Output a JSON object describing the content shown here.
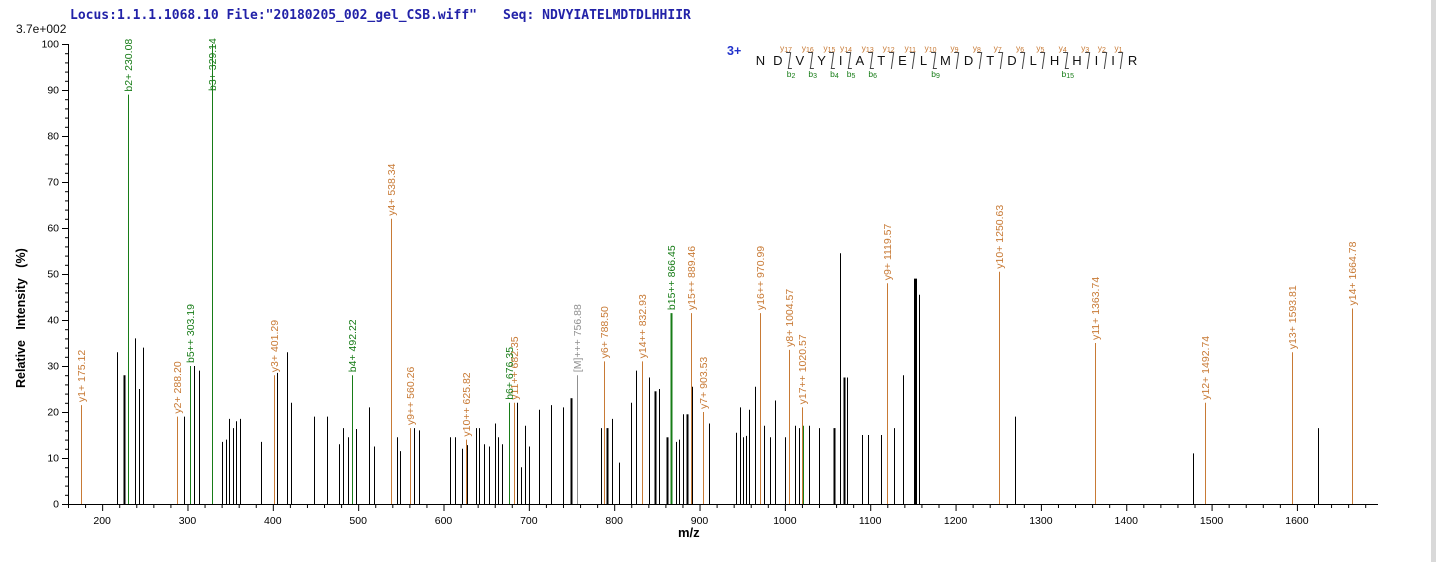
{
  "header": {
    "locus_file": "Locus:1.1.1.1068.10 File:\"20180205_002_gel_CSB.wiff\"",
    "seq_label": "Seq:",
    "sequence": "NDVYIATELMDTDLHHIIR",
    "text_color": "#2222a8"
  },
  "peptide_map": {
    "charge_label": "3+",
    "residues": [
      "N",
      "D",
      "V",
      "Y",
      "I",
      "A",
      "T",
      "E",
      "L",
      "M",
      "D",
      "T",
      "D",
      "L",
      "H",
      "H",
      "I",
      "I",
      "R"
    ],
    "gap_annotations": [
      {
        "gap_after": 2,
        "y": "y17",
        "b": "b2"
      },
      {
        "gap_after": 3,
        "y": "y16",
        "b": "b3"
      },
      {
        "gap_after": 4,
        "y": "y15",
        "b": "b4"
      },
      {
        "gap_after": 5,
        "y": "y14",
        "b": "b5"
      },
      {
        "gap_after": 6,
        "y": "y13",
        "b": "b6"
      },
      {
        "gap_after": 7,
        "y": "y12",
        "b": null
      },
      {
        "gap_after": 8,
        "y": "y11",
        "b": null
      },
      {
        "gap_after": 9,
        "y": "y10",
        "b": "b9"
      },
      {
        "gap_after": 10,
        "y": "y9",
        "b": null
      },
      {
        "gap_after": 11,
        "y": "y8",
        "b": null
      },
      {
        "gap_after": 12,
        "y": "y7",
        "b": null
      },
      {
        "gap_after": 13,
        "y": "y6",
        "b": null
      },
      {
        "gap_after": 14,
        "y": "y5",
        "b": null
      },
      {
        "gap_after": 15,
        "y": "y4",
        "b": "b15"
      },
      {
        "gap_after": 16,
        "y": "y3",
        "b": null
      },
      {
        "gap_after": 17,
        "y": "y2",
        "b": null
      },
      {
        "gap_after": 18,
        "y": "y1",
        "b": null
      }
    ]
  },
  "chart_data": {
    "type": "bar",
    "subtype": "ms2-mass-spectrum",
    "intensity_scale": "3.7e+002",
    "xlabel": "m/z",
    "ylabel": "Relative  Intensity (%)",
    "xlim": [
      160,
      1695
    ],
    "ylim": [
      0,
      100
    ],
    "x_major_tick_start": 200,
    "x_major_tick_end": 1600,
    "x_major_step": 100,
    "x_minor_step": 20,
    "y_major_step": 10,
    "y_minor_step": 2,
    "grid": false,
    "colors": {
      "y_ion": "#c87a35",
      "b_ion": "#177c17",
      "precursor": "#909090",
      "unassigned": "#000000",
      "axis": "#000000"
    },
    "series": [
      {
        "name": "y-ions",
        "color_key": "y_ion",
        "peaks": [
          {
            "mz": 175.12,
            "pct": 21.5,
            "label": "y1+ 175.12"
          },
          {
            "mz": 288.2,
            "pct": 19.0,
            "label": "y2+ 288.20"
          },
          {
            "mz": 401.29,
            "pct": 28.0,
            "label": "y3+ 401.29"
          },
          {
            "mz": 538.34,
            "pct": 62.0,
            "label": "y4+ 538.34"
          },
          {
            "mz": 560.26,
            "pct": 16.5,
            "label": "y9++ 560.26"
          },
          {
            "mz": 625.82,
            "pct": 14.0,
            "label": "y10++ 625.82"
          },
          {
            "mz": 682.35,
            "pct": 22.0,
            "label": "y11++ 682.35"
          },
          {
            "mz": 788.5,
            "pct": 31.0,
            "label": "y6+ 788.50"
          },
          {
            "mz": 832.93,
            "pct": 31.0,
            "label": "y14++ 832.93"
          },
          {
            "mz": 889.46,
            "pct": 41.5,
            "label": "y15++ 889.46"
          },
          {
            "mz": 903.53,
            "pct": 20.0,
            "label": "y7+ 903.53"
          },
          {
            "mz": 970.99,
            "pct": 41.5,
            "label": "y16++ 970.99"
          },
          {
            "mz": 1004.57,
            "pct": 33.5,
            "label": "y8+ 1004.57"
          },
          {
            "mz": 1020.57,
            "pct": 21.0,
            "label": "y17++ 1020.57"
          },
          {
            "mz": 1119.57,
            "pct": 48.0,
            "label": "y9+ 1119.57"
          },
          {
            "mz": 1250.63,
            "pct": 50.5,
            "label": "y10+ 1250.63"
          },
          {
            "mz": 1363.74,
            "pct": 35.0,
            "label": "y11+ 1363.74"
          },
          {
            "mz": 1492.74,
            "pct": 22.0,
            "label": "y12+ 1492.74"
          },
          {
            "mz": 1593.81,
            "pct": 33.0,
            "label": "y13+ 1593.81"
          },
          {
            "mz": 1664.78,
            "pct": 42.5,
            "label": "y14+ 1664.78"
          }
        ]
      },
      {
        "name": "b-ions",
        "color_key": "b_ion",
        "peaks": [
          {
            "mz": 230.08,
            "pct": 89.0,
            "label": "b2+ 230.08"
          },
          {
            "mz": 303.19,
            "pct": 30.0,
            "label": "b5++ 303.19"
          },
          {
            "mz": 329.14,
            "pct": 100.0,
            "label": "b3+ 329.14"
          },
          {
            "mz": 492.22,
            "pct": 28.0,
            "label": "b4+ 492.22"
          },
          {
            "mz": 676.35,
            "pct": 22.0,
            "label": "b6+ 676.35"
          },
          {
            "mz": 866.45,
            "pct": 41.5,
            "label": "b15++ 866.45",
            "w": 2
          },
          {
            "mz": 1020.9,
            "pct": 17.0,
            "label": ""
          }
        ]
      },
      {
        "name": "precursor",
        "color_key": "precursor",
        "peaks": [
          {
            "mz": 756.88,
            "pct": 28.0,
            "label": "[M]+++ 756.88"
          }
        ]
      },
      {
        "name": "unassigned",
        "color_key": "unassigned",
        "peaks": [
          {
            "mz": 218,
            "pct": 33
          },
          {
            "mz": 226,
            "pct": 28,
            "w": 2
          },
          {
            "mz": 238,
            "pct": 36
          },
          {
            "mz": 243,
            "pct": 25
          },
          {
            "mz": 248,
            "pct": 34
          },
          {
            "mz": 296,
            "pct": 19
          },
          {
            "mz": 308,
            "pct": 30
          },
          {
            "mz": 313,
            "pct": 29
          },
          {
            "mz": 340,
            "pct": 13.5
          },
          {
            "mz": 345,
            "pct": 14
          },
          {
            "mz": 349,
            "pct": 18.5
          },
          {
            "mz": 353,
            "pct": 16.5
          },
          {
            "mz": 357,
            "pct": 18
          },
          {
            "mz": 361,
            "pct": 18.5
          },
          {
            "mz": 386,
            "pct": 13.5
          },
          {
            "mz": 405,
            "pct": 28.5
          },
          {
            "mz": 417,
            "pct": 33
          },
          {
            "mz": 421,
            "pct": 22
          },
          {
            "mz": 448,
            "pct": 19
          },
          {
            "mz": 464,
            "pct": 19
          },
          {
            "mz": 478,
            "pct": 13
          },
          {
            "mz": 482,
            "pct": 16.5
          },
          {
            "mz": 488,
            "pct": 14.5
          },
          {
            "mz": 497,
            "pct": 16.3
          },
          {
            "mz": 513,
            "pct": 21
          },
          {
            "mz": 519,
            "pct": 12.5
          },
          {
            "mz": 545,
            "pct": 14.5
          },
          {
            "mz": 549,
            "pct": 11.5
          },
          {
            "mz": 566,
            "pct": 16.5
          },
          {
            "mz": 571,
            "pct": 16
          },
          {
            "mz": 608,
            "pct": 14.5
          },
          {
            "mz": 613,
            "pct": 14.5
          },
          {
            "mz": 622,
            "pct": 12
          },
          {
            "mz": 628,
            "pct": 12.8
          },
          {
            "mz": 638,
            "pct": 16.5
          },
          {
            "mz": 642,
            "pct": 16.5
          },
          {
            "mz": 648,
            "pct": 13
          },
          {
            "mz": 653,
            "pct": 12.5
          },
          {
            "mz": 660,
            "pct": 17.5
          },
          {
            "mz": 664,
            "pct": 14.5
          },
          {
            "mz": 668,
            "pct": 13
          },
          {
            "mz": 686,
            "pct": 22
          },
          {
            "mz": 691,
            "pct": 8
          },
          {
            "mz": 695,
            "pct": 17
          },
          {
            "mz": 700,
            "pct": 12.5
          },
          {
            "mz": 712,
            "pct": 20.5
          },
          {
            "mz": 726,
            "pct": 21.5
          },
          {
            "mz": 740,
            "pct": 21
          },
          {
            "mz": 749,
            "pct": 23,
            "w": 2
          },
          {
            "mz": 785,
            "pct": 16.5
          },
          {
            "mz": 791,
            "pct": 16.5,
            "w": 2
          },
          {
            "mz": 797,
            "pct": 18.5
          },
          {
            "mz": 806,
            "pct": 9
          },
          {
            "mz": 820,
            "pct": 22
          },
          {
            "mz": 825,
            "pct": 29
          },
          {
            "mz": 841,
            "pct": 27.5
          },
          {
            "mz": 848,
            "pct": 24.5,
            "w": 2
          },
          {
            "mz": 852,
            "pct": 25
          },
          {
            "mz": 862,
            "pct": 14.5,
            "w": 2
          },
          {
            "mz": 872,
            "pct": 13.5
          },
          {
            "mz": 876,
            "pct": 14
          },
          {
            "mz": 881,
            "pct": 19.5
          },
          {
            "mz": 885,
            "pct": 19.5,
            "w": 2
          },
          {
            "mz": 891,
            "pct": 25.5
          },
          {
            "mz": 911,
            "pct": 17.5
          },
          {
            "mz": 943,
            "pct": 15.5
          },
          {
            "mz": 947,
            "pct": 21
          },
          {
            "mz": 951,
            "pct": 14.5
          },
          {
            "mz": 954,
            "pct": 14.8
          },
          {
            "mz": 958,
            "pct": 20.5
          },
          {
            "mz": 965,
            "pct": 25.5
          },
          {
            "mz": 975,
            "pct": 17
          },
          {
            "mz": 983,
            "pct": 14.5
          },
          {
            "mz": 988,
            "pct": 22.5
          },
          {
            "mz": 1000,
            "pct": 14.5
          },
          {
            "mz": 1012,
            "pct": 17
          },
          {
            "mz": 1016,
            "pct": 16.5
          },
          {
            "mz": 1028,
            "pct": 17
          },
          {
            "mz": 1040,
            "pct": 16.5
          },
          {
            "mz": 1057,
            "pct": 16.5,
            "w": 2
          },
          {
            "mz": 1065,
            "pct": 54.5
          },
          {
            "mz": 1069,
            "pct": 27.5,
            "w": 2
          },
          {
            "mz": 1073,
            "pct": 27.5
          },
          {
            "mz": 1090,
            "pct": 15
          },
          {
            "mz": 1097,
            "pct": 15
          },
          {
            "mz": 1113,
            "pct": 15
          },
          {
            "mz": 1128,
            "pct": 16.5
          },
          {
            "mz": 1138,
            "pct": 28
          },
          {
            "mz": 1152,
            "pct": 49,
            "w": 3
          },
          {
            "mz": 1157,
            "pct": 45.5
          },
          {
            "mz": 1270,
            "pct": 19
          },
          {
            "mz": 1478,
            "pct": 11
          },
          {
            "mz": 1625,
            "pct": 16.5
          }
        ]
      }
    ]
  }
}
